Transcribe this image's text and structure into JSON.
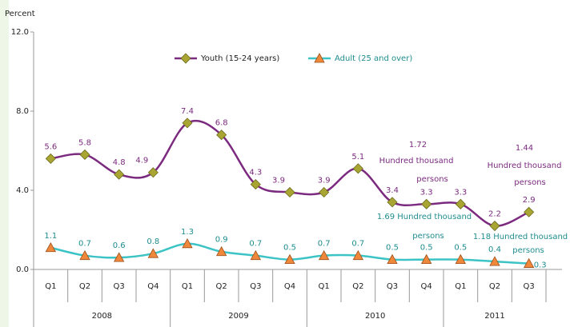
{
  "chart_data": {
    "type": "line",
    "y_label": "Percent",
    "categories": [
      "Q1",
      "Q2",
      "Q3",
      "Q4",
      "Q1",
      "Q2",
      "Q3",
      "Q4",
      "Q1",
      "Q2",
      "Q3",
      "Q4",
      "Q1",
      "Q2",
      "Q3"
    ],
    "years": [
      "2008",
      "2009",
      "2010",
      "2011"
    ],
    "ylim": [
      0,
      12
    ],
    "yticks": [
      {
        "value": 0,
        "label": "0.0"
      },
      {
        "value": 4,
        "label": "4.0"
      },
      {
        "value": 8,
        "label": "8.0"
      },
      {
        "value": 12,
        "label": "12.0"
      }
    ],
    "series": [
      {
        "name": "Youth (15-24 years)",
        "color": "#7b2a7f",
        "marker_color": "#a9a533",
        "values": [
          5.6,
          5.8,
          4.8,
          4.9,
          7.4,
          6.8,
          4.3,
          3.9,
          3.9,
          5.1,
          3.4,
          3.3,
          3.3,
          2.2,
          2.9
        ]
      },
      {
        "name": "Adult (25 and over)",
        "color": "#3cc3c6",
        "marker_color": "#f0883c",
        "values": [
          1.1,
          0.7,
          0.6,
          0.8,
          1.3,
          0.9,
          0.7,
          0.5,
          0.7,
          0.7,
          0.5,
          0.5,
          0.5,
          0.4,
          0.3
        ]
      }
    ],
    "annotations": [
      {
        "lines": [
          "1.72",
          "Hundred thousand",
          "persons"
        ]
      },
      {
        "lines": [
          "1.44",
          "Hundred thousand",
          "persons"
        ]
      },
      {
        "lines": [
          "1.69 Hundred thousand",
          "persons"
        ]
      },
      {
        "lines": [
          "1.18 Hundred thousand",
          "persons"
        ]
      }
    ]
  }
}
